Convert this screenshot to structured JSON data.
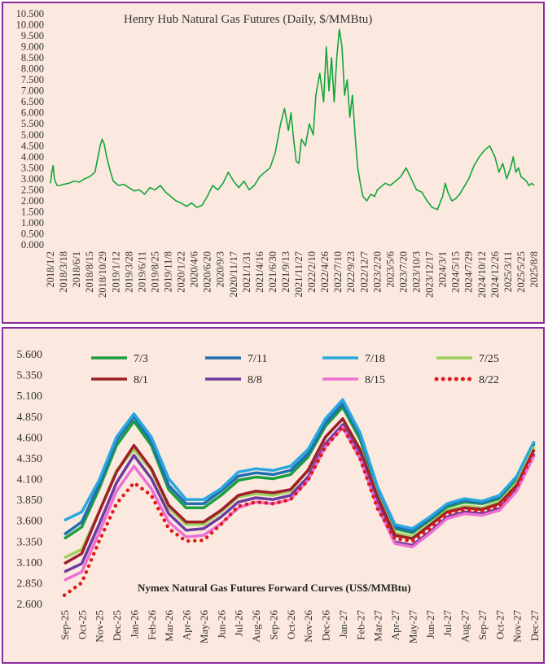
{
  "chart_data": [
    {
      "type": "line",
      "title": "Henry Hub Natural Gas Futures (Daily, $/MMBtu)",
      "xlabel": "",
      "ylabel": "",
      "ylim": [
        0,
        10.5
      ],
      "y_ticks": [
        "0.000",
        "0.500",
        "1.000",
        "1.500",
        "2.000",
        "2.500",
        "3.000",
        "3.500",
        "4.000",
        "4.500",
        "5.000",
        "5.500",
        "6.000",
        "6.500",
        "7.000",
        "7.500",
        "8.000",
        "8.500",
        "9.000",
        "9.500",
        "10.000",
        "10.500"
      ],
      "x_tick_labels": [
        "2018/1/2",
        "2018/3/18",
        "2018/6/1",
        "2018/8/15",
        "2018/10/29",
        "2019/1/12",
        "2019/3/28",
        "2019/6/11",
        "2019/8/25",
        "2019/11/8",
        "2020/1/22",
        "2020/4/6",
        "2020/6/20",
        "2020/9/3",
        "2020/11/17",
        "2021/1/31",
        "2021/4/16",
        "2021/6/30",
        "2021/9/13",
        "2021/11/27",
        "2022/2/10",
        "2022/4/26",
        "2022/7/10",
        "2022/9/23",
        "2022/12/7",
        "2023/2/20",
        "2023/5/6",
        "2023/7/20",
        "2023/10/3",
        "2023/12/17",
        "2024/3/1",
        "2024/5/15",
        "2024/7/29",
        "2024/10/12",
        "2024/12/26",
        "2025/3/11",
        "2025/5/25",
        "2025/8/8"
      ],
      "line_color": "#13a538",
      "series": [
        {
          "x": [
            0,
            0.1,
            0.2,
            0.3,
            0.5,
            0.7,
            1,
            1.4,
            1.8,
            2.2,
            2.6,
            3,
            3.4,
            3.8,
            3.95,
            4.1,
            4.3,
            4.6,
            4.8,
            5.2,
            5.6,
            6,
            6.4,
            6.8,
            7.2,
            7.6,
            8,
            8.4,
            8.8,
            9.2,
            9.6,
            10,
            10.4,
            10.8,
            11.2,
            11.6,
            12,
            12.4,
            12.8,
            13.2,
            13.6,
            14,
            14.4,
            14.8,
            15.2,
            15.6,
            16,
            16.4,
            16.8,
            17.2,
            17.6,
            17.9,
            18.2,
            18.4,
            18.6,
            18.8,
            19,
            19.2,
            19.5,
            19.8,
            20.1,
            20.3,
            20.6,
            20.9,
            21.1,
            21.3,
            21.5,
            21.7,
            21.9,
            22.1,
            22.3,
            22.5,
            22.7,
            22.9,
            23.1,
            23.3,
            23.5,
            23.7,
            23.9,
            24.2,
            24.5,
            24.8,
            25,
            25.2,
            25.6,
            26,
            26.4,
            26.8,
            27.2,
            27.6,
            28,
            28.4,
            28.8,
            29.2,
            29.6,
            30,
            30.2,
            30.4,
            30.7,
            31,
            31.3,
            31.6,
            32,
            32.4,
            32.8,
            33.2,
            33.6,
            34,
            34.3,
            34.6,
            34.9,
            35.2,
            35.4,
            35.6,
            35.8,
            36,
            36.2,
            36.4,
            36.6,
            36.8,
            37
          ],
          "values": [
            2.8,
            3.3,
            3.6,
            3.0,
            2.7,
            2.7,
            2.75,
            2.8,
            2.9,
            2.85,
            3.0,
            3.1,
            3.3,
            4.5,
            4.8,
            4.6,
            4.0,
            3.3,
            2.9,
            2.7,
            2.75,
            2.6,
            2.45,
            2.5,
            2.3,
            2.6,
            2.5,
            2.7,
            2.4,
            2.2,
            2.0,
            1.9,
            1.75,
            1.9,
            1.7,
            1.8,
            2.2,
            2.7,
            2.5,
            2.8,
            3.3,
            2.9,
            2.6,
            2.9,
            2.5,
            2.7,
            3.1,
            3.3,
            3.5,
            4.2,
            5.5,
            6.2,
            5.2,
            6.0,
            4.8,
            3.8,
            3.7,
            4.8,
            4.5,
            5.5,
            5.0,
            6.8,
            7.8,
            6.5,
            9.0,
            7.0,
            8.5,
            6.5,
            8.5,
            9.8,
            9.0,
            6.8,
            7.5,
            5.8,
            6.8,
            5.0,
            3.5,
            2.8,
            2.2,
            2.0,
            2.3,
            2.2,
            2.5,
            2.6,
            2.8,
            2.7,
            2.9,
            3.1,
            3.5,
            3.0,
            2.5,
            2.4,
            2.0,
            1.7,
            1.6,
            2.2,
            2.8,
            2.4,
            2.0,
            2.1,
            2.3,
            2.6,
            3.0,
            3.6,
            4.0,
            4.3,
            4.5,
            4.0,
            3.3,
            3.7,
            3.0,
            3.5,
            4.0,
            3.3,
            3.5,
            3.1,
            3.0,
            2.9,
            2.7,
            2.8,
            2.7
          ]
        }
      ]
    },
    {
      "type": "line",
      "title": "Nymex Natural Gas Futures Forward Curves (US$/MMBtu)",
      "xlabel": "",
      "ylabel": "",
      "ylim": [
        2.6,
        5.6
      ],
      "y_ticks": [
        "2.600",
        "2.850",
        "3.100",
        "3.350",
        "3.600",
        "3.850",
        "4.100",
        "4.350",
        "4.600",
        "4.850",
        "5.100",
        "5.350",
        "5.600"
      ],
      "categories": [
        "Sep-25",
        "Oct-25",
        "Nov-25",
        "Dec-25",
        "Jan-26",
        "Feb-26",
        "Mar-26",
        "Apr-26",
        "May-26",
        "Jun-26",
        "Jul-26",
        "Aug-26",
        "Sep-26",
        "Oct-26",
        "Nov-26",
        "Dec-26",
        "Jan-27",
        "Feb-27",
        "Mar-27",
        "Apr-27",
        "May-27",
        "Jun-27",
        "Jul-27",
        "Aug-27",
        "Sep-27",
        "Oct-27",
        "Nov-27",
        "Dec-27"
      ],
      "legend": "top",
      "series": [
        {
          "name": "7/3",
          "color": "#1a9e3f",
          "style": "solid",
          "values": [
            3.38,
            3.52,
            3.98,
            4.5,
            4.79,
            4.5,
            3.97,
            3.75,
            3.75,
            3.9,
            4.08,
            4.12,
            4.1,
            4.15,
            4.36,
            4.73,
            4.96,
            4.57,
            3.97,
            3.5,
            3.45,
            3.6,
            3.76,
            3.82,
            3.8,
            3.86,
            4.1,
            4.52
          ]
        },
        {
          "name": "7/11",
          "color": "#1f6fb5",
          "style": "solid",
          "values": [
            3.43,
            3.58,
            4.03,
            4.56,
            4.85,
            4.55,
            4.02,
            3.8,
            3.8,
            3.95,
            4.13,
            4.17,
            4.15,
            4.2,
            4.4,
            4.77,
            5.0,
            4.62,
            3.98,
            3.52,
            3.47,
            3.62,
            3.78,
            3.84,
            3.81,
            3.88,
            4.12,
            4.54
          ]
        },
        {
          "name": "7/18",
          "color": "#2aa7de",
          "style": "solid",
          "values": [
            3.6,
            3.7,
            4.08,
            4.6,
            4.88,
            4.6,
            4.1,
            3.85,
            3.85,
            3.98,
            4.18,
            4.22,
            4.2,
            4.25,
            4.45,
            4.82,
            5.05,
            4.65,
            4.0,
            3.55,
            3.5,
            3.64,
            3.8,
            3.86,
            3.83,
            3.9,
            4.13,
            4.55
          ]
        },
        {
          "name": "7/25",
          "color": "#9fd15f",
          "style": "solid",
          "values": [
            3.15,
            3.25,
            3.7,
            4.2,
            4.45,
            4.2,
            3.75,
            3.55,
            3.55,
            3.7,
            3.88,
            3.92,
            3.9,
            3.95,
            4.2,
            4.6,
            4.82,
            4.45,
            3.9,
            3.45,
            3.4,
            3.55,
            3.72,
            3.77,
            3.75,
            3.82,
            4.05,
            4.48
          ]
        },
        {
          "name": "8/1",
          "color": "#9e1e2a",
          "style": "solid",
          "values": [
            3.08,
            3.2,
            3.7,
            4.18,
            4.5,
            4.22,
            3.78,
            3.58,
            3.58,
            3.72,
            3.9,
            3.95,
            3.93,
            3.97,
            4.2,
            4.6,
            4.82,
            4.45,
            3.88,
            3.42,
            3.38,
            3.54,
            3.7,
            3.75,
            3.73,
            3.8,
            4.02,
            4.45
          ]
        },
        {
          "name": "8/8",
          "color": "#6d3a9f",
          "style": "solid",
          "values": [
            2.98,
            3.08,
            3.55,
            4.05,
            4.38,
            4.1,
            3.68,
            3.48,
            3.5,
            3.64,
            3.82,
            3.87,
            3.85,
            3.9,
            4.12,
            4.52,
            4.75,
            4.38,
            3.8,
            3.34,
            3.3,
            3.46,
            3.64,
            3.7,
            3.68,
            3.74,
            3.97,
            4.4
          ]
        },
        {
          "name": "8/15",
          "color": "#ee6fd4",
          "style": "solid",
          "values": [
            2.88,
            2.98,
            3.45,
            3.95,
            4.25,
            3.98,
            3.58,
            3.4,
            3.42,
            3.56,
            3.75,
            3.82,
            3.8,
            3.85,
            4.08,
            4.48,
            4.72,
            4.34,
            3.76,
            3.32,
            3.28,
            3.44,
            3.62,
            3.68,
            3.66,
            3.72,
            3.95,
            4.38
          ]
        },
        {
          "name": "8/22",
          "color": "#e01a1a",
          "style": "dotted",
          "values": [
            2.7,
            2.85,
            3.35,
            3.8,
            4.05,
            3.9,
            3.5,
            3.35,
            3.36,
            3.55,
            3.77,
            3.82,
            3.8,
            3.85,
            4.08,
            4.48,
            4.72,
            4.34,
            3.74,
            3.38,
            3.35,
            3.5,
            3.68,
            3.73,
            3.71,
            3.77,
            4.0,
            4.43
          ]
        }
      ]
    }
  ]
}
